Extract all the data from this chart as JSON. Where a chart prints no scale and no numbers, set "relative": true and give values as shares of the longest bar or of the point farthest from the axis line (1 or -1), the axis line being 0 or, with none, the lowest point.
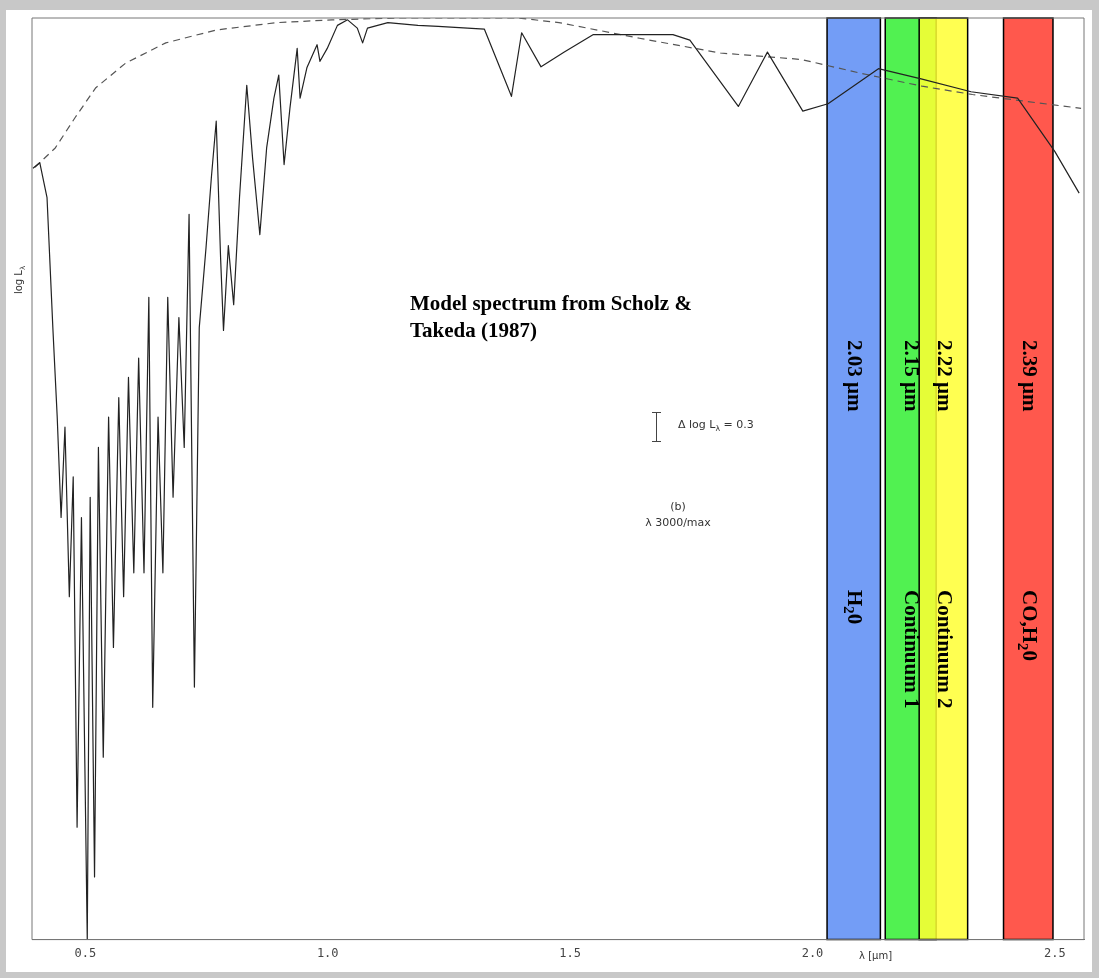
{
  "chart_data": {
    "type": "line",
    "relative": true,
    "xlabel": "λ [μm]",
    "ylabel": "log L$_{λ}$",
    "xlim": [
      0.39,
      2.56
    ],
    "xticks": [
      {
        "value": 0.5,
        "label": "0.5"
      },
      {
        "value": 1.0,
        "label": "1.0"
      },
      {
        "value": 1.5,
        "label": "1.5"
      },
      {
        "value": 2.0,
        "label": "2.0"
      },
      {
        "value": 2.5,
        "label": "2.5"
      }
    ],
    "tick_labels": "x",
    "grid": false,
    "legend": false,
    "series": [
      {
        "color": "#222222",
        "line_style": "solid",
        "x": [
          0.392,
          0.406,
          0.421,
          0.433,
          0.442,
          0.45,
          0.458,
          0.467,
          0.475,
          0.483,
          0.492,
          0.504,
          0.51,
          0.519,
          0.527,
          0.537,
          0.548,
          0.558,
          0.569,
          0.579,
          0.589,
          0.6,
          0.61,
          0.621,
          0.631,
          0.639,
          0.65,
          0.66,
          0.67,
          0.681,
          0.693,
          0.704,
          0.714,
          0.725,
          0.735,
          0.749,
          0.76,
          0.77,
          0.779,
          0.785,
          0.795,
          0.806,
          0.818,
          0.833,
          0.845,
          0.86,
          0.874,
          0.889,
          0.899,
          0.91,
          0.922,
          0.937,
          0.943,
          0.957,
          0.978,
          0.984,
          0.999,
          1.02,
          1.041,
          1.061,
          1.072,
          1.082,
          1.124,
          1.186,
          1.228,
          1.323,
          1.379,
          1.4,
          1.44,
          1.488,
          1.548,
          1.712,
          1.747,
          1.847,
          1.907,
          1.98,
          2.032,
          2.136,
          2.224,
          2.327,
          2.423,
          2.5,
          2.55
        ],
        "values": [
          0.837,
          0.843,
          0.805,
          0.664,
          0.567,
          0.458,
          0.556,
          0.372,
          0.502,
          0.122,
          0.458,
          0,
          0.48,
          0.068,
          0.534,
          0.198,
          0.567,
          0.317,
          0.588,
          0.372,
          0.61,
          0.398,
          0.631,
          0.398,
          0.697,
          0.252,
          0.567,
          0.398,
          0.697,
          0.48,
          0.675,
          0.534,
          0.787,
          0.274,
          0.664,
          0.751,
          0.827,
          0.888,
          0.74,
          0.661,
          0.753,
          0.689,
          0.805,
          0.927,
          0.848,
          0.765,
          0.859,
          0.913,
          0.938,
          0.841,
          0.902,
          0.967,
          0.913,
          0.946,
          0.971,
          0.953,
          0.967,
          0.992,
          0.998,
          0.989,
          0.973,
          0.989,
          0.995,
          0.992,
          0.991,
          0.988,
          0.915,
          0.984,
          0.947,
          0.963,
          0.982,
          0.982,
          0.976,
          0.904,
          0.963,
          0.899,
          0.907,
          0.945,
          0.934,
          0.92,
          0.913,
          0.855,
          0.81
        ]
      },
      {
        "color": "#555555",
        "line_style": "dashed",
        "x": [
          0.396,
          0.438,
          0.479,
          0.521,
          0.583,
          0.666,
          0.77,
          0.895,
          1.009,
          1.144,
          1.29,
          1.394,
          1.477,
          1.643,
          1.81,
          1.977,
          2.1,
          2.226,
          2.33,
          2.433,
          2.554
        ],
        "values": [
          0.838,
          0.859,
          0.892,
          0.924,
          0.951,
          0.973,
          0.987,
          0.995,
          0.998,
          1,
          1,
          1,
          0.995,
          0.978,
          0.962,
          0.955,
          0.94,
          0.926,
          0.917,
          0.91,
          0.902
        ]
      }
    ],
    "bands": [
      {
        "axis": "x",
        "from": 2.03,
        "to": 2.14,
        "label": "2.03 μm\nH$_{2}$0",
        "color": "#5a8cf5"
      },
      {
        "axis": "x",
        "from": 2.15,
        "to": 2.255,
        "label": "2.15 μm\nContinuum 1",
        "color": "#33ee33"
      },
      {
        "axis": "x",
        "from": 2.22,
        "to": 2.32,
        "label": "2.22 μm\nContinuum 2",
        "color": "#ffff33"
      },
      {
        "axis": "x",
        "from": 2.394,
        "to": 2.496,
        "label": "2.39 μm\nCO,H$_{2}$0",
        "color": "#ff3b2e"
      }
    ],
    "annotations": [
      "Model spectrum from Scholz & Takeda (1987)",
      "Δ log L$_{λ}$ = 0.3",
      "(b)",
      "λ 3000/max"
    ]
  }
}
